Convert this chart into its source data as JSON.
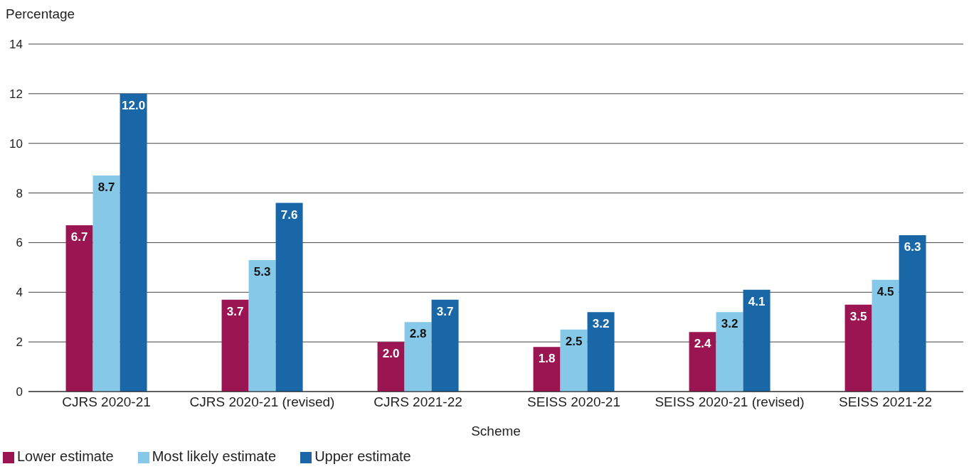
{
  "chart_data": {
    "type": "bar",
    "ylabel": "Percentage",
    "xlabel": "Scheme",
    "categories": [
      "CJRS 2020-21",
      "CJRS 2020-21 (revised)",
      "CJRS 2021-22",
      "SEISS 2020-21",
      "SEISS 2020-21 (revised)",
      "SEISS 2021-22"
    ],
    "series": [
      {
        "name": "Lower estimate",
        "color": "#9b1553",
        "values": [
          6.7,
          3.7,
          2.0,
          1.8,
          2.4,
          3.5
        ],
        "value_labels": [
          "6.7",
          "3.7",
          "2.0",
          "1.8",
          "2.4",
          "3.5"
        ]
      },
      {
        "name": "Most likely estimate",
        "color": "#85c8e8",
        "values": [
          8.7,
          5.3,
          2.8,
          2.5,
          3.2,
          4.5
        ],
        "value_labels": [
          "8.7",
          "5.3",
          "2.8",
          "2.5",
          "3.2",
          "4.5"
        ]
      },
      {
        "name": "Upper estimate",
        "color": "#1a67a8",
        "values": [
          12.0,
          7.6,
          3.7,
          3.2,
          4.1,
          6.3
        ],
        "value_labels": [
          "12.0",
          "7.6",
          "3.7",
          "3.2",
          "4.1",
          "6.3"
        ]
      }
    ],
    "ylim": [
      0,
      14
    ],
    "yticks": [
      0,
      2,
      4,
      6,
      8,
      10,
      12,
      14
    ],
    "grid": "y",
    "legend": "bottom left"
  }
}
